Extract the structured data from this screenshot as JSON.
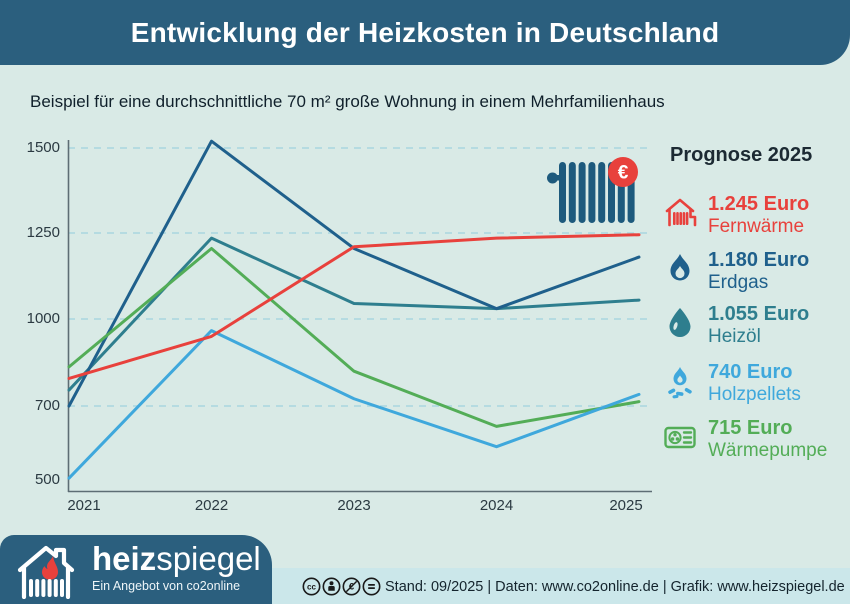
{
  "header": {
    "title": "Entwicklung der Heizkosten in Deutschland"
  },
  "subtitle": "Beispiel für eine durchschnittliche 70 m² große Wohnung in einem Mehrfamilienhaus",
  "colors": {
    "header_bg": "#2b5f7e",
    "page_bg": "#d9eae6",
    "footer_strip": "#cbe7ea",
    "gridline": "#b5dbe1",
    "axis": "#5d6d74",
    "radiator": "#1d5a7d",
    "euro_badge": "#e8413c"
  },
  "chart_data": {
    "type": "line",
    "x": [
      "2021",
      "2022",
      "2023",
      "2024",
      "2025"
    ],
    "series": [
      {
        "name": "Fernwärme",
        "color": "#e8413c",
        "values": [
          795,
          940,
          1210,
          1235,
          1245
        ]
      },
      {
        "name": "Erdgas",
        "color": "#1f608c",
        "values": [
          700,
          1520,
          1205,
          1030,
          1180
        ]
      },
      {
        "name": "Heizöl",
        "color": "#2e7e8e",
        "values": [
          755,
          1235,
          1045,
          1030,
          1055
        ]
      },
      {
        "name": "Holzpellets",
        "color": "#3fa8dc",
        "values": [
          505,
          960,
          725,
          590,
          740
        ]
      },
      {
        "name": "Wärmepumpe",
        "color": "#53ad57",
        "values": [
          835,
          1205,
          820,
          645,
          715
        ]
      }
    ],
    "y_ticks": [
      1500,
      1250,
      1000,
      700,
      500
    ],
    "gridline_ticks": [
      1500,
      1250,
      1000,
      700
    ],
    "ylim": [
      500,
      1550
    ],
    "grid": "horizontal dashed",
    "legend_position": "right"
  },
  "chart_icon": {
    "currency": "€"
  },
  "legend": {
    "title": "Prognose 2025",
    "items": [
      {
        "icon": "district-heating-icon",
        "price": "1.245 Euro",
        "label": "Fernwärme",
        "color": "#e8413c"
      },
      {
        "icon": "gas-flame-icon",
        "price": "1.180 Euro",
        "label": "Erdgas",
        "color": "#1f608c"
      },
      {
        "icon": "oil-drop-icon",
        "price": "1.055 Euro",
        "label": "Heizöl",
        "color": "#2e7e8e"
      },
      {
        "icon": "pellets-fire-icon",
        "price": "740 Euro",
        "label": "Holzpellets",
        "color": "#3fa8dc"
      },
      {
        "icon": "heat-pump-icon",
        "price": "715 Euro",
        "label": "Wärmepumpe",
        "color": "#53ad57"
      }
    ]
  },
  "footer": {
    "logo_bold": "heiz",
    "logo_light": "spiegel",
    "tagline": "Ein Angebot von co2online",
    "license": "CC BY-NC-ND",
    "info": "Stand: 09/2025  |  Daten: www.co2online.de  |  Grafik: www.heizspiegel.de"
  }
}
